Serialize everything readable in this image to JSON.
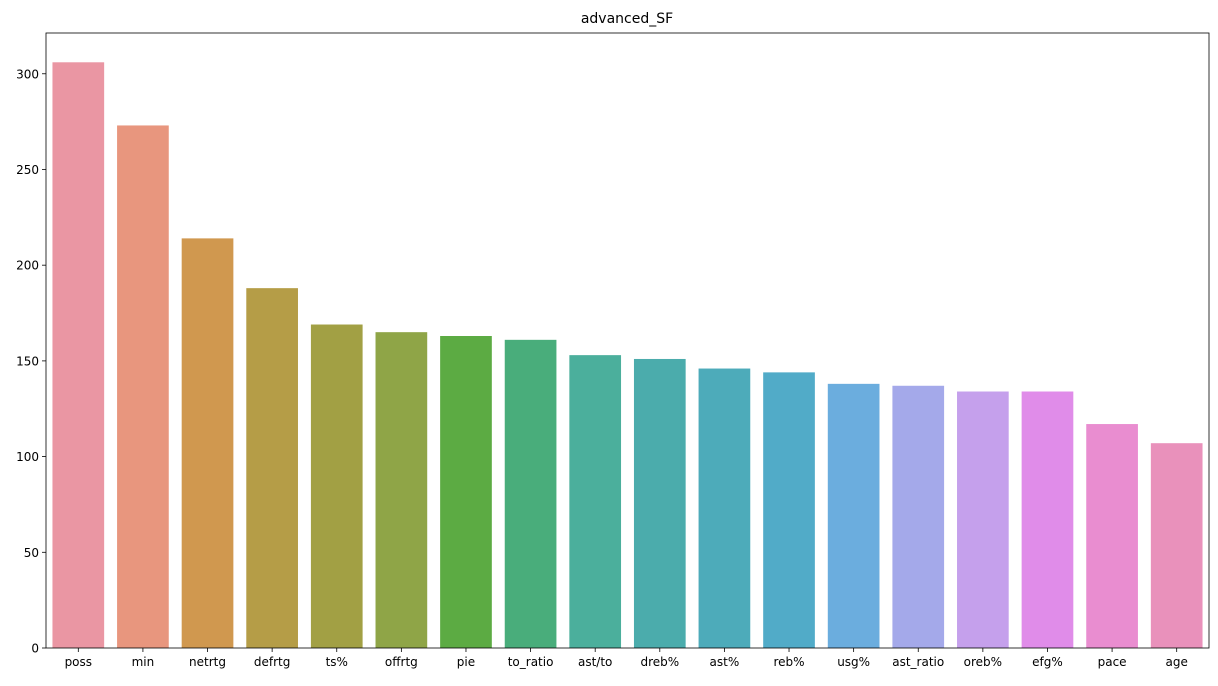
{
  "chart_data": {
    "type": "bar",
    "title": "advanced_SF",
    "xlabel": "",
    "ylabel": "",
    "categories": [
      "poss",
      "min",
      "netrtg",
      "defrtg",
      "ts%",
      "offrtg",
      "pie",
      "to_ratio",
      "ast/to",
      "dreb%",
      "ast%",
      "reb%",
      "usg%",
      "ast_ratio",
      "oreb%",
      "efg%",
      "pace",
      "age"
    ],
    "values": [
      306,
      273,
      214,
      188,
      169,
      165,
      163,
      161,
      153,
      151,
      146,
      144,
      138,
      137,
      134,
      134,
      117,
      107
    ],
    "colors": [
      "#ea96a3",
      "#e8967e",
      "#d0984f",
      "#b59d47",
      "#a2a044",
      "#8fa547",
      "#5cab43",
      "#49ad7b",
      "#4baf9c",
      "#4bacac",
      "#4dabba",
      "#51abc8",
      "#6badde",
      "#a4a9ea",
      "#c5a0ec",
      "#e08ce9",
      "#e98dd0",
      "#e991bb"
    ],
    "yticks": [
      "0",
      "50",
      "100",
      "150",
      "200",
      "250",
      "300"
    ],
    "ylim": [
      0,
      321.3
    ],
    "grid": false,
    "legend": "none"
  }
}
